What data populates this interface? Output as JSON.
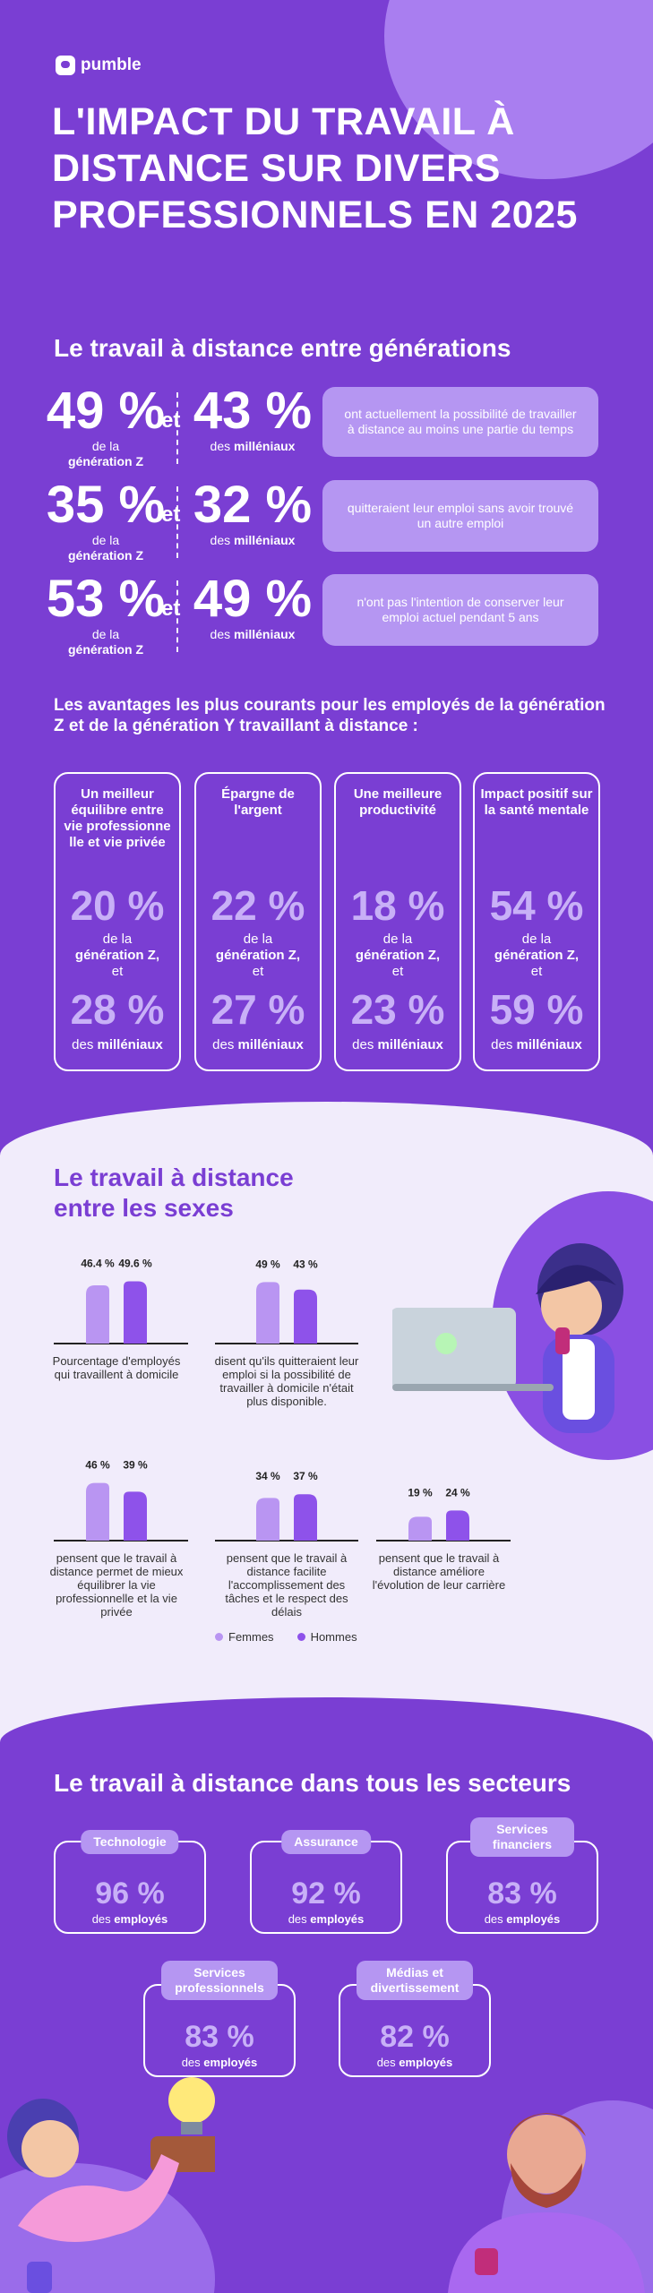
{
  "brand": {
    "name": "pumble"
  },
  "title": "L'IMPACT DU TRAVAIL À DISTANCE SUR DIVERS PROFESSIONNELS EN 2025",
  "generations": {
    "heading": "Le travail à distance entre générations",
    "et": "et",
    "rows": [
      {
        "a_pct": "49 %",
        "a_lab1": "de la",
        "a_lab2": "génération Z",
        "b_pct": "43 %",
        "b_lab1": "des",
        "b_lab2": "milléniaux",
        "desc": "ont actuellement la possibilité de travailler à distance au moins une partie du temps"
      },
      {
        "a_pct": "35 %",
        "a_lab1": "de la",
        "a_lab2": "génération Z",
        "b_pct": "32 %",
        "b_lab1": "des",
        "b_lab2": "milléniaux",
        "desc": "quitteraient leur emploi sans avoir trouvé un autre emploi"
      },
      {
        "a_pct": "53 %",
        "a_lab1": "de la",
        "a_lab2": "génération Z",
        "b_pct": "49 %",
        "b_lab1": "des",
        "b_lab2": "milléniaux",
        "desc": "n'ont pas l'intention de conserver leur emploi actuel pendant 5 ans"
      }
    ]
  },
  "advantages": {
    "heading": "Les avantages les plus courants pour les employés de la génération Z et de la génération Y travaillant à distance :",
    "cards": [
      {
        "title": "Un meilleur équilibre entre vie professionne lle et vie privée",
        "p1": "20 %",
        "l1a": "de la",
        "l1b": "génération Z,",
        "l1c": "et",
        "p2": "28 %",
        "l2a": "des",
        "l2b": "milléniaux"
      },
      {
        "title": "Épargne de l'argent",
        "p1": "22 %",
        "l1a": "de la",
        "l1b": "génération Z,",
        "l1c": "et",
        "p2": "27 %",
        "l2a": "des",
        "l2b": "milléniaux"
      },
      {
        "title": "Une meilleure productivité",
        "p1": "18 %",
        "l1a": "de la",
        "l1b": "génération Z,",
        "l1c": "et",
        "p2": "23 %",
        "l2a": "des",
        "l2b": "milléniaux"
      },
      {
        "title": "Impact positif sur la santé mentale",
        "p1": "54 %",
        "l1a": "de la",
        "l1b": "génération Z,",
        "l1c": "et",
        "p2": "59 %",
        "l2a": "des",
        "l2b": "milléniaux"
      }
    ]
  },
  "sexes": {
    "heading": "Le travail à distance entre les sexes",
    "legend": {
      "f": "Femmes",
      "h": "Hommes",
      "f_color": "#b995f2",
      "h_color": "#8e52ea"
    }
  },
  "chart_data": {
    "type": "bar",
    "series": [
      {
        "name": "Femmes"
      },
      {
        "name": "Hommes"
      }
    ],
    "groups": [
      {
        "caption": "Pourcentage d'employés qui travaillent à domicile",
        "f": 46.4,
        "h": 49.6,
        "f_label": "46.4 %",
        "h_label": "49.6 %"
      },
      {
        "caption": "disent qu'ils quitteraient leur emploi  si la possibilité de travailler à domicile n'était plus disponible.",
        "f": 49,
        "h": 43,
        "f_label": "49 %",
        "h_label": "43 %"
      },
      {
        "caption": "pensent que le travail à distance permet de mieux équilibrer la vie professionnelle et la vie privée",
        "f": 46,
        "h": 39,
        "f_label": "46 %",
        "h_label": "39 %"
      },
      {
        "caption": "pensent que le travail à distance facilite l'accomplissement des tâches et le respect des délais",
        "f": 34,
        "h": 37,
        "f_label": "34 %",
        "h_label": "37 %"
      },
      {
        "caption": "pensent que le travail à distance améliore l'évolution de leur carrière",
        "f": 19,
        "h": 24,
        "f_label": "19 %",
        "h_label": "24 %"
      }
    ]
  },
  "sectors": {
    "heading": "Le travail à distance dans tous les secteurs",
    "items": [
      {
        "tag": "Technologie",
        "pct": "96 %",
        "sub1": "des",
        "sub2": "employés"
      },
      {
        "tag": "Assurance",
        "pct": "92 %",
        "sub1": "des",
        "sub2": "employés"
      },
      {
        "tag": "Services financiers",
        "pct": "83 %",
        "sub1": "des",
        "sub2": "employés"
      },
      {
        "tag": "Services professionnels",
        "pct": "83 %",
        "sub1": "des",
        "sub2": "employés"
      },
      {
        "tag": "Médias et divertissement",
        "pct": "82 %",
        "sub1": "des",
        "sub2": "employés"
      }
    ]
  }
}
